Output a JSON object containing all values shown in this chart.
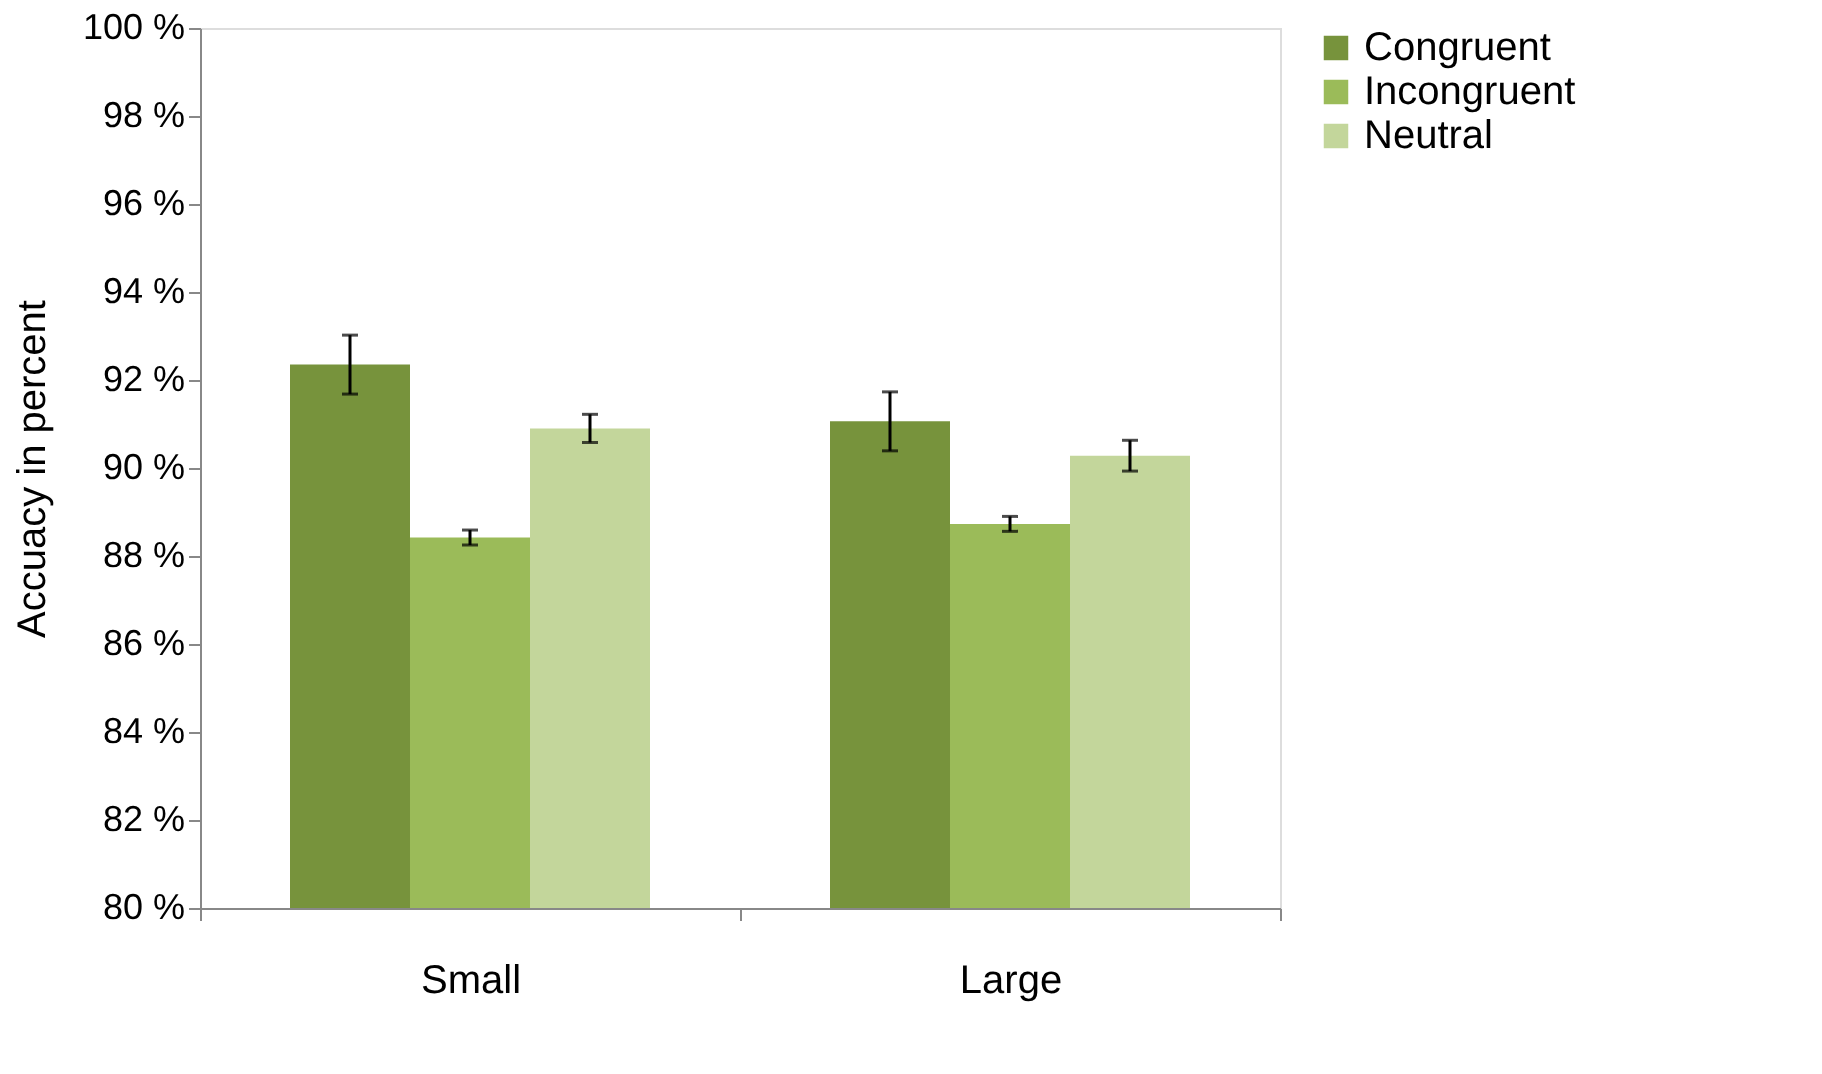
{
  "chart_data": {
    "type": "bar",
    "ylabel": "Accuacy in percent",
    "categories": [
      "Small",
      "Large"
    ],
    "series": [
      {
        "name": "Congruent",
        "color": "#77933c",
        "values": [
          92.35,
          91.06
        ],
        "errors": [
          0.67,
          0.67
        ]
      },
      {
        "name": "Incongruent",
        "color": "#9bbb59",
        "values": [
          88.42,
          88.73
        ],
        "errors": [
          0.17,
          0.17
        ]
      },
      {
        "name": "Neutral",
        "color": "#c3d69b",
        "values": [
          90.9,
          90.28
        ],
        "errors": [
          0.32,
          0.35
        ]
      }
    ],
    "ylim": [
      80,
      100
    ],
    "yticks": [
      {
        "value": 80,
        "label": "80 %"
      },
      {
        "value": 82,
        "label": "82 %"
      },
      {
        "value": 84,
        "label": "84 %"
      },
      {
        "value": 86,
        "label": "86 %"
      },
      {
        "value": 88,
        "label": "88 %"
      },
      {
        "value": 90,
        "label": "90 %"
      },
      {
        "value": 92,
        "label": "92 %"
      },
      {
        "value": 94,
        "label": "94 %"
      },
      {
        "value": 96,
        "label": "96 %"
      },
      {
        "value": 98,
        "label": "98 %"
      },
      {
        "value": 100,
        "label": "100 %"
      }
    ],
    "grid": false,
    "legend": "right"
  }
}
